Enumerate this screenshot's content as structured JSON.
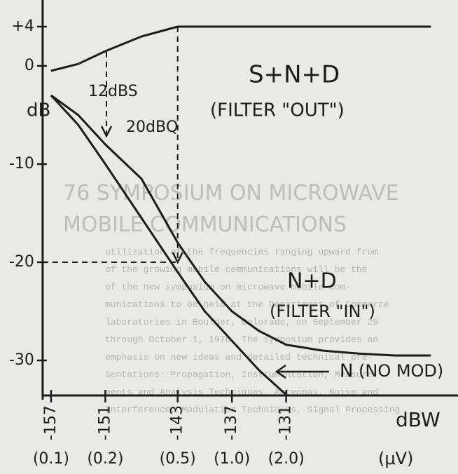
{
  "chart_data": {
    "type": "line",
    "x": [
      -157,
      -154,
      -151,
      -147,
      -143,
      -140,
      -137,
      -134,
      -131,
      -127,
      -123,
      -119,
      -115
    ],
    "series": [
      {
        "name": "S+N+D",
        "color": "#1c1c1c",
        "values": [
          -0.5,
          0.2,
          1.5,
          3,
          4,
          4,
          4,
          4,
          4,
          4,
          4,
          4,
          4
        ]
      },
      {
        "name": "N+D",
        "color": "#1c1c1c",
        "values": [
          -3,
          -5,
          -8,
          -11.5,
          -18,
          -22,
          -25,
          -27,
          -28.4,
          -29,
          -29.3,
          -29.5,
          -29.5
        ]
      },
      {
        "name": "N",
        "color": "#1c1c1c",
        "values": [
          -3,
          -6,
          -10,
          -15.5,
          -21,
          -25,
          -28,
          -31,
          -33.5,
          null,
          null,
          null,
          null
        ]
      }
    ],
    "xlim": [
      -158,
      -112
    ],
    "xticks": [
      -157,
      -151,
      -143,
      -137,
      -131
    ],
    "x_secondary_labels": [
      "(0.1)",
      "(0.2)",
      "(0.5)",
      "(1.0)",
      "(2.0)"
    ],
    "x_label": "dBW",
    "x_secondary_label": "(μV)",
    "y_label": "dB",
    "ylim": [
      -34,
      6
    ],
    "yticks": [
      {
        "value": 4,
        "label": "+4"
      },
      0,
      -10,
      -20,
      -30
    ],
    "annotations": [
      "(FILTER \"OUT\")",
      "12dBS",
      "20dBQ",
      "(FILTER \"IN\")",
      "(NO MOD)"
    ]
  },
  "background": {
    "heading": [
      "76 SYMPOSIUM ON MICROWAVE",
      "MOBILE COMMUNICATIONS"
    ],
    "lines": [
      "utilization of the frequencies ranging upward from",
      "of the growing mobile communications will be the",
      "of the new symposium on microwave mobile com-",
      "munications to be held at the Department of Commerce",
      "laboratories in Boulder, Colorado, on September 29",
      "through October 1, 1976. The symposium provides an",
      "emphasis on new ideas and detailed technical pre-",
      "Sentations: Propagation, Instrumentation, Measure-",
      "ments and Analysis Techniques, Antennas, Noise and",
      "Interference, Modulation Techniques, Signal Processing"
    ]
  }
}
